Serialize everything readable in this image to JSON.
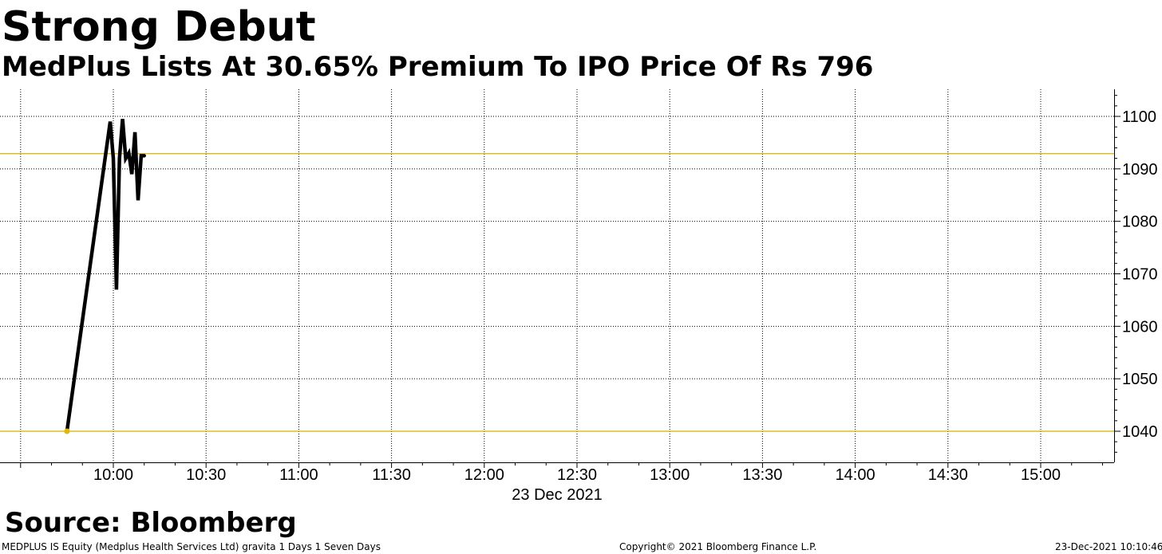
{
  "header": {
    "title": "Strong Debut",
    "subtitle": "MedPlus Lists At 30.65% Premium To IPO Price Of Rs 796"
  },
  "source": "Source: Bloomberg",
  "footer": {
    "left": "MEDPLUS IS Equity (Medplus Health Services Ltd) gravita 1 Days 1 Seven Days",
    "center": "Copyright© 2021 Bloomberg Finance L.P.",
    "right": "23-Dec-2021 10:10:46"
  },
  "chart_data": {
    "type": "line",
    "title": "Strong Debut",
    "subtitle": "MedPlus Lists At 30.65% Premium To IPO Price Of Rs 796",
    "xlabel": "23 Dec 2021",
    "ylabel": "",
    "x_tick_labels": [
      "10:00",
      "10:30",
      "11:00",
      "11:30",
      "12:00",
      "12:30",
      "13:00",
      "13:30",
      "14:00",
      "14:30",
      "15:00"
    ],
    "y_tick_labels": [
      "1040",
      "1050",
      "1060",
      "1070",
      "1080",
      "1090",
      "1100"
    ],
    "xlim": [
      "09:30",
      "15:30"
    ],
    "ylim": [
      1034,
      1105
    ],
    "grid": true,
    "y_axis_side": "right",
    "series": [
      {
        "color": "#000000",
        "x": [
          "09:45",
          "09:59",
          "10:00",
          "10:01",
          "10:02",
          "10:03",
          "10:04",
          "10:05",
          "10:06",
          "10:07",
          "10:08",
          "10:09",
          "10:10"
        ],
        "y": [
          1040,
          1099,
          1092,
          1067,
          1092,
          1099.5,
          1092,
          1093,
          1089,
          1097,
          1084,
          1092.5,
          1092.5
        ]
      }
    ],
    "reference_lines": [
      {
        "y": 1092.9,
        "color": "#d4b000"
      },
      {
        "y": 1040,
        "color": "#d4b000"
      }
    ],
    "markers": [
      {
        "x": "09:45",
        "y": 1040,
        "color": "#e0b800"
      }
    ]
  }
}
